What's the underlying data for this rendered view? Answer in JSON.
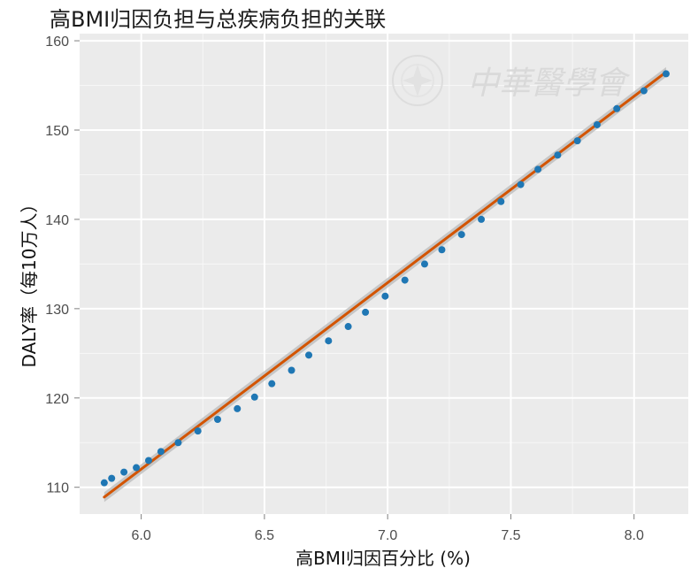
{
  "chart_data": {
    "type": "scatter",
    "title": "高BMI归因负担与总疾病负担的关联",
    "xlabel": "高BMI归因百分比 (%)",
    "ylabel": "DALY率（每10万人）",
    "xlim": [
      5.75,
      8.22
    ],
    "ylim": [
      107.0,
      160.8
    ],
    "x_ticks": [
      6.0,
      6.5,
      7.0,
      7.5,
      8.0
    ],
    "y_ticks": [
      110,
      120,
      130,
      140,
      150,
      160
    ],
    "grid": true,
    "colors": {
      "points": "#1f77b4",
      "fit_line": "#d35400",
      "confidence_band": "#bfbfbf",
      "panel_background": "#ebebeb",
      "gridline": "#ffffff"
    },
    "points": [
      {
        "x": 5.85,
        "y": 110.5
      },
      {
        "x": 5.88,
        "y": 111.0
      },
      {
        "x": 5.93,
        "y": 111.7
      },
      {
        "x": 5.98,
        "y": 112.2
      },
      {
        "x": 6.03,
        "y": 113.0
      },
      {
        "x": 6.08,
        "y": 114.0
      },
      {
        "x": 6.15,
        "y": 115.0
      },
      {
        "x": 6.23,
        "y": 116.3
      },
      {
        "x": 6.31,
        "y": 117.6
      },
      {
        "x": 6.39,
        "y": 118.8
      },
      {
        "x": 6.46,
        "y": 120.1
      },
      {
        "x": 6.53,
        "y": 121.6
      },
      {
        "x": 6.61,
        "y": 123.1
      },
      {
        "x": 6.68,
        "y": 124.8
      },
      {
        "x": 6.76,
        "y": 126.4
      },
      {
        "x": 6.84,
        "y": 128.0
      },
      {
        "x": 6.91,
        "y": 129.6
      },
      {
        "x": 6.99,
        "y": 131.4
      },
      {
        "x": 7.07,
        "y": 133.2
      },
      {
        "x": 7.15,
        "y": 135.0
      },
      {
        "x": 7.22,
        "y": 136.6
      },
      {
        "x": 7.3,
        "y": 138.3
      },
      {
        "x": 7.38,
        "y": 140.0
      },
      {
        "x": 7.46,
        "y": 142.0
      },
      {
        "x": 7.54,
        "y": 143.9
      },
      {
        "x": 7.61,
        "y": 145.6
      },
      {
        "x": 7.69,
        "y": 147.2
      },
      {
        "x": 7.77,
        "y": 148.8
      },
      {
        "x": 7.85,
        "y": 150.6
      },
      {
        "x": 7.93,
        "y": 152.4
      },
      {
        "x": 8.04,
        "y": 154.4
      },
      {
        "x": 8.13,
        "y": 156.3
      }
    ],
    "fit_line": {
      "start": {
        "x": 5.85,
        "y": 108.9
      },
      "end": {
        "x": 8.13,
        "y": 156.5
      }
    }
  },
  "watermark": {
    "text": "中華醫學會"
  }
}
